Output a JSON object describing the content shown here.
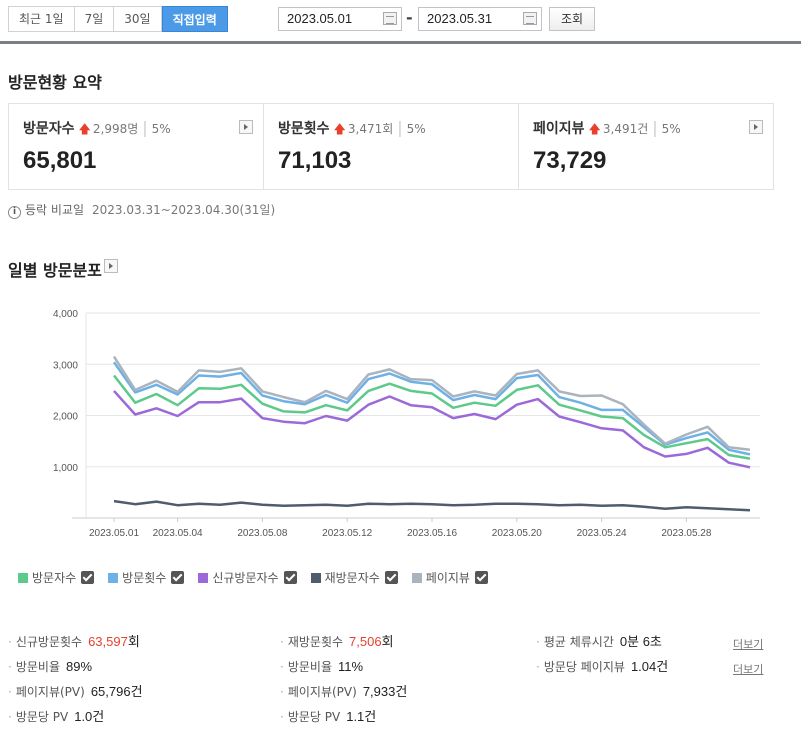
{
  "period_buttons": [
    "최근 1일",
    "7일",
    "30일",
    "직접입력"
  ],
  "date_range": {
    "start": "2023.05.01",
    "separator": "-",
    "end": "2023.05.31",
    "search_label": "조회"
  },
  "summary": {
    "title": "방문현황 요약",
    "cards": [
      {
        "label": "방문자수",
        "delta": "2,998명",
        "percent": "5%",
        "value": "65,801"
      },
      {
        "label": "방문횟수",
        "delta": "3,471회",
        "percent": "5%",
        "value": "71,103"
      },
      {
        "label": "페이지뷰",
        "delta": "3,491건",
        "percent": "5%",
        "value": "73,729"
      }
    ],
    "compare_label": "등락 비교일",
    "compare_range": "2023.03.31~2023.04.30(31일)"
  },
  "daily": {
    "title": "일별 방문분포"
  },
  "chart_data": {
    "type": "line",
    "x": [
      "2023.05.01",
      "2023.05.02",
      "2023.05.03",
      "2023.05.04",
      "2023.05.05",
      "2023.05.06",
      "2023.05.07",
      "2023.05.08",
      "2023.05.09",
      "2023.05.10",
      "2023.05.11",
      "2023.05.12",
      "2023.05.13",
      "2023.05.14",
      "2023.05.15",
      "2023.05.16",
      "2023.05.17",
      "2023.05.18",
      "2023.05.19",
      "2023.05.20",
      "2023.05.21",
      "2023.05.22",
      "2023.05.23",
      "2023.05.24",
      "2023.05.25",
      "2023.05.26",
      "2023.05.27",
      "2023.05.28",
      "2023.05.29",
      "2023.05.30",
      "2023.05.31"
    ],
    "xticks": [
      "2023.05.01",
      "2023.05.04",
      "2023.05.08",
      "2023.05.12",
      "2023.05.16",
      "2023.05.20",
      "2023.05.24",
      "2023.05.28"
    ],
    "ylim": [
      0,
      4000
    ],
    "yticks": [
      "1,000",
      "2,000",
      "3,000",
      "4,000"
    ],
    "series": [
      {
        "name": "방문자수",
        "color": "#5dc98a",
        "values": [
          2780,
          2250,
          2420,
          2200,
          2530,
          2520,
          2600,
          2230,
          2080,
          2060,
          2200,
          2100,
          2480,
          2620,
          2480,
          2430,
          2150,
          2250,
          2190,
          2500,
          2590,
          2210,
          2100,
          1980,
          1950,
          1620,
          1380,
          1460,
          1540,
          1230,
          1160
        ]
      },
      {
        "name": "방문횟수",
        "color": "#6eb1e6",
        "values": [
          3040,
          2450,
          2600,
          2410,
          2780,
          2760,
          2830,
          2390,
          2280,
          2220,
          2400,
          2250,
          2710,
          2820,
          2660,
          2610,
          2300,
          2400,
          2320,
          2730,
          2790,
          2360,
          2250,
          2110,
          2110,
          1770,
          1430,
          1560,
          1670,
          1330,
          1240
        ]
      },
      {
        "name": "신규방문자수",
        "color": "#9b6ad8",
        "values": [
          2480,
          2020,
          2140,
          1990,
          2260,
          2260,
          2330,
          1950,
          1880,
          1850,
          1990,
          1900,
          2210,
          2370,
          2200,
          2160,
          1950,
          2030,
          1930,
          2210,
          2320,
          1980,
          1870,
          1750,
          1710,
          1380,
          1200,
          1250,
          1370,
          1080,
          990
        ]
      },
      {
        "name": "재방문자수",
        "color": "#4f5c6e",
        "values": [
          330,
          270,
          320,
          250,
          280,
          260,
          300,
          260,
          240,
          250,
          260,
          240,
          280,
          270,
          280,
          270,
          250,
          260,
          280,
          280,
          270,
          250,
          260,
          240,
          250,
          220,
          180,
          210,
          190,
          170,
          150
        ]
      },
      {
        "name": "페이지뷰",
        "color": "#aab4bf",
        "values": [
          3150,
          2500,
          2680,
          2460,
          2880,
          2850,
          2920,
          2470,
          2360,
          2260,
          2480,
          2320,
          2800,
          2900,
          2710,
          2690,
          2370,
          2470,
          2390,
          2810,
          2880,
          2470,
          2380,
          2390,
          2220,
          1820,
          1450,
          1630,
          1780,
          1380,
          1330
        ]
      }
    ]
  },
  "stats": {
    "col1": [
      {
        "label": "신규방문횟수",
        "value_hl": "63,597",
        "unit": "회"
      },
      {
        "label": "방문비율",
        "value": "89%"
      },
      {
        "label": "페이지뷰(PV)",
        "value": "65,796건"
      },
      {
        "label": "방문당 PV",
        "value": "1.0건"
      }
    ],
    "col2": [
      {
        "label": "재방문횟수",
        "value_hl": "7,506",
        "unit": "회"
      },
      {
        "label": "방문비율",
        "value": "11%"
      },
      {
        "label": "페이지뷰(PV)",
        "value": "7,933건"
      },
      {
        "label": "방문당 PV",
        "value": "1.1건"
      }
    ],
    "col3": [
      {
        "label": "평균 체류시간",
        "value": "0분 6초"
      },
      {
        "label": "방문당 페이지뷰",
        "value": "1.04건"
      }
    ],
    "more_label": "더보기"
  }
}
